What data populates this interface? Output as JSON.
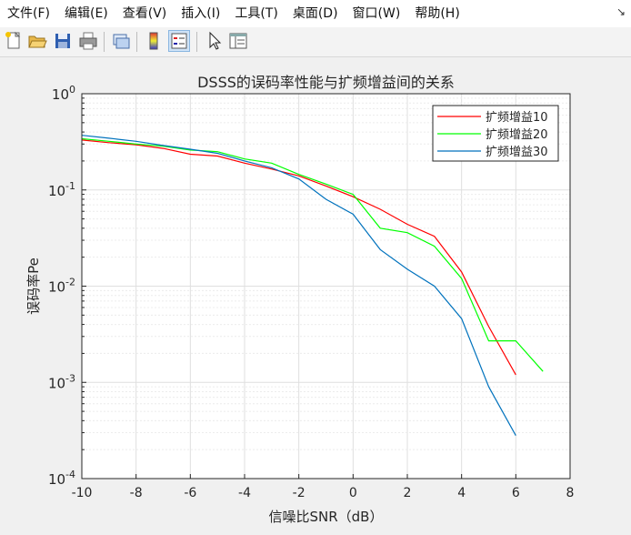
{
  "menu": {
    "items": [
      "文件(F)",
      "编辑(E)",
      "查看(V)",
      "插入(I)",
      "工具(T)",
      "桌面(D)",
      "窗口(W)",
      "帮助(H)"
    ],
    "chevron": "↘"
  },
  "toolbar": {
    "icons": [
      "new-file-icon",
      "open-folder-icon",
      "save-icon",
      "print-icon",
      "link-plot-icon",
      "colorbar-icon",
      "legend-icon",
      "pointer-icon",
      "property-inspector-icon"
    ]
  },
  "chart_data": {
    "type": "line",
    "title": "DSSS的误码率性能与扩频增益间的关系",
    "xlabel": "信噪比SNR（dB）",
    "ylabel": "误码率Pe",
    "xlim": [
      -10,
      8
    ],
    "ylim": [
      0.0001,
      1
    ],
    "yscale": "log",
    "grid": true,
    "legend_position": "top-right",
    "x_ticks": [
      "-10",
      "-8",
      "-6",
      "-4",
      "-2",
      "0",
      "2",
      "4",
      "6",
      "8"
    ],
    "y_ticks": [
      "10^-4",
      "10^-3",
      "10^-2",
      "10^-1",
      "10^0"
    ],
    "series": [
      {
        "name": "扩频增益10",
        "color": "#ff0000",
        "x": [
          -10,
          -9,
          -8,
          -7,
          -6,
          -5,
          -4,
          -3,
          -2,
          -1,
          0,
          1,
          2,
          3,
          4,
          5,
          6
        ],
        "y": [
          0.33,
          0.31,
          0.295,
          0.27,
          0.235,
          0.225,
          0.19,
          0.165,
          0.14,
          0.11,
          0.085,
          0.063,
          0.044,
          0.033,
          0.014,
          0.0038,
          0.0012
        ]
      },
      {
        "name": "扩频增益20",
        "color": "#00ff00",
        "x": [
          -10,
          -9,
          -8,
          -7,
          -6,
          -5,
          -4,
          -3,
          -2,
          -1,
          0,
          1,
          2,
          3,
          4,
          5,
          6,
          7
        ],
        "y": [
          0.34,
          0.32,
          0.3,
          0.285,
          0.26,
          0.25,
          0.21,
          0.19,
          0.145,
          0.115,
          0.09,
          0.04,
          0.036,
          0.026,
          0.012,
          0.0027,
          0.0027,
          0.0013
        ]
      },
      {
        "name": "扩频增益30",
        "color": "#0072bd",
        "x": [
          -10,
          -9,
          -8,
          -7,
          -6,
          -5,
          -4,
          -3,
          -2,
          -1,
          0,
          1,
          2,
          3,
          4,
          5,
          6
        ],
        "y": [
          0.37,
          0.345,
          0.32,
          0.29,
          0.265,
          0.24,
          0.2,
          0.17,
          0.13,
          0.08,
          0.056,
          0.024,
          0.015,
          0.01,
          0.0046,
          0.0009,
          0.00028
        ]
      }
    ]
  }
}
